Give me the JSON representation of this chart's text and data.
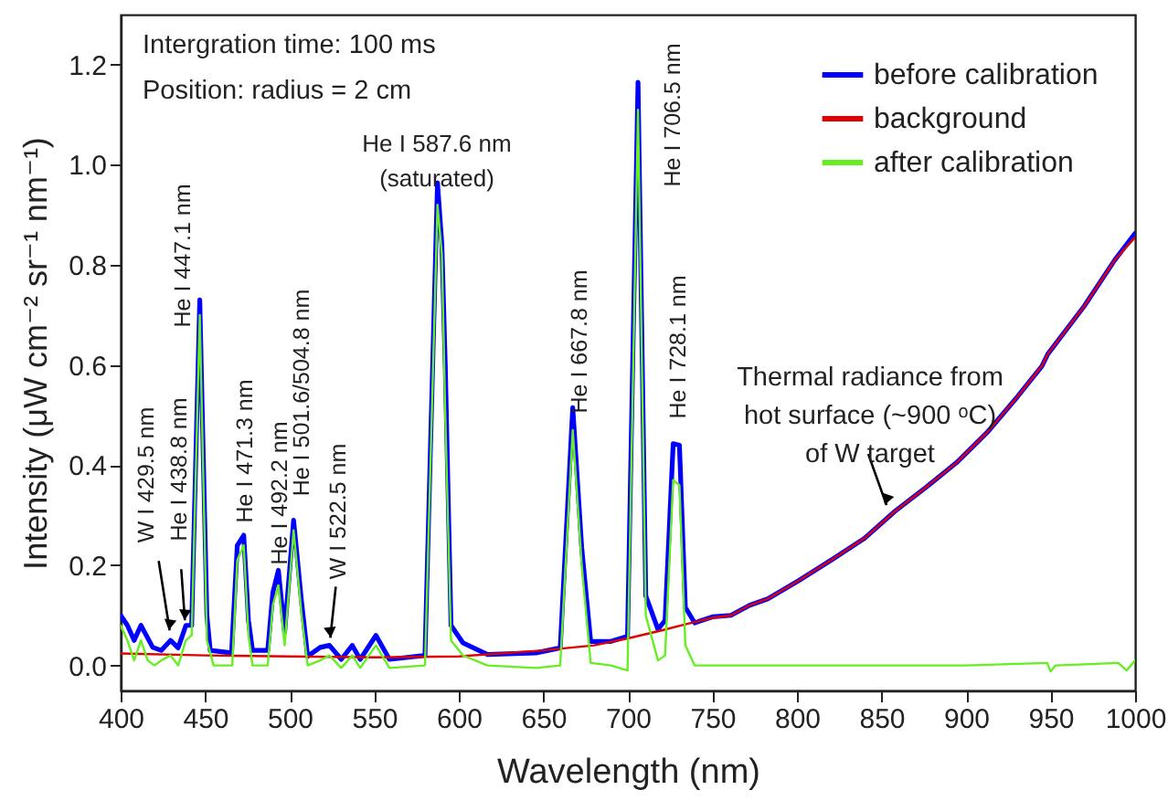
{
  "chart_data": {
    "type": "line",
    "xlabel": "Wavelength (nm)",
    "ylabel": "Intensity (μW cm⁻² sr⁻¹ nm⁻¹)",
    "xlim": [
      400,
      1000
    ],
    "xticks": [
      400,
      450,
      500,
      550,
      600,
      650,
      700,
      750,
      800,
      850,
      900,
      950,
      1000
    ],
    "ylim": [
      -0.05,
      1.3
    ],
    "yticks": [
      {
        "value": 0,
        "label": "0.0"
      },
      0.2,
      0.4,
      0.6,
      0.8,
      {
        "value": 1,
        "label": "1.0"
      },
      1.2
    ],
    "grid": false,
    "legend": "top right",
    "marker": "none",
    "line_style": "solid",
    "series": [
      {
        "name": "before calibration",
        "color": "#0000ff",
        "x": [
          400,
          404,
          408,
          412,
          419,
          424,
          429.5,
          434,
          438.6,
          442,
          446.8,
          451,
          453,
          465.6,
          469,
          472.8,
          475.6,
          478,
          487,
          490,
          493.3,
          497,
          502.3,
          507,
          510.6,
          518,
          523.5,
          530.5,
          537,
          541.7,
          551,
          559,
          580,
          587.4,
          590,
          592,
          595.4,
          602.5,
          617,
          645.7,
          660,
          667.4,
          672.7,
          678,
          690,
          699.8,
          706,
          710.6,
          717.8,
          722,
          726.8,
          730.5,
          734,
          739.5,
          750,
          761,
          772,
          782.7,
          800.8,
          820.5,
          840,
          858,
          876.4,
          894.4,
          912.4,
          930.5,
          944.9,
          948.4,
          970,
          988,
          1000
        ],
        "values": [
          0.1,
          0.08,
          0.05,
          0.08,
          0.036,
          0.03,
          0.05,
          0.035,
          0.08,
          0.08,
          0.73,
          0.1,
          0.03,
          0.025,
          0.24,
          0.26,
          0.09,
          0.03,
          0.03,
          0.145,
          0.19,
          0.066,
          0.29,
          0.127,
          0.018,
          0.036,
          0.04,
          0.012,
          0.04,
          0.012,
          0.06,
          0.012,
          0.02,
          0.964,
          0.84,
          0.6,
          0.08,
          0.045,
          0.022,
          0.025,
          0.035,
          0.515,
          0.235,
          0.048,
          0.048,
          0.058,
          1.165,
          0.139,
          0.072,
          0.09,
          0.443,
          0.44,
          0.116,
          0.085,
          0.097,
          0.1,
          0.12,
          0.133,
          0.169,
          0.211,
          0.254,
          0.308,
          0.356,
          0.405,
          0.465,
          0.537,
          0.598,
          0.622,
          0.718,
          0.81,
          0.863
        ]
      },
      {
        "name": "background",
        "color": "#e00000",
        "x": [
          400,
          450,
          500,
          550,
          600,
          650,
          680,
          700,
          720,
          735,
          750,
          761,
          772,
          782.7,
          800.8,
          820.5,
          840,
          858,
          876.4,
          894.4,
          912.4,
          930.5,
          944.9,
          948.4,
          970,
          988,
          1000
        ],
        "values": [
          0.024,
          0.02,
          0.018,
          0.016,
          0.018,
          0.03,
          0.04,
          0.054,
          0.07,
          0.083,
          0.095,
          0.1,
          0.12,
          0.133,
          0.169,
          0.211,
          0.254,
          0.308,
          0.356,
          0.405,
          0.465,
          0.537,
          0.598,
          0.622,
          0.718,
          0.81,
          0.855
        ]
      },
      {
        "name": "after calibration",
        "color": "#66ee22",
        "x": [
          400,
          404,
          408,
          412,
          416,
          420,
          424,
          429.5,
          434,
          438.6,
          442,
          446.8,
          451,
          455,
          466,
          469,
          472.8,
          475.6,
          478,
          487,
          490,
          493.3,
          497,
          502.3,
          507,
          510.6,
          518,
          523.5,
          530.5,
          537,
          541.7,
          551,
          559,
          580,
          587.4,
          590,
          592,
          595.4,
          602.5,
          617,
          645.7,
          660,
          667.4,
          672.7,
          678,
          690,
          699.8,
          706,
          710.6,
          717.8,
          722,
          726.8,
          730.5,
          734,
          739.5,
          750,
          800,
          850,
          900,
          948,
          950,
          953,
          990,
          995,
          1000
        ],
        "values": [
          0.08,
          0.05,
          0.01,
          0.05,
          0.01,
          0,
          0.01,
          0.02,
          0,
          0.05,
          0.06,
          0.7,
          0.05,
          0,
          0,
          0.21,
          0.24,
          0.06,
          0,
          0,
          0.12,
          0.16,
          0.04,
          0.27,
          0.1,
          0,
          0.01,
          0.02,
          -0.005,
          0.02,
          -0.005,
          0.04,
          -0.005,
          0,
          0.92,
          0.82,
          0.5,
          0.05,
          0.02,
          0,
          -0.005,
          0,
          0.47,
          0.2,
          0.005,
          0,
          -0.01,
          1.11,
          0.1,
          0.01,
          0.02,
          0.37,
          0.36,
          0.04,
          0,
          0,
          0,
          0,
          0,
          0.005,
          -0.012,
          0,
          0.005,
          -0.01,
          0.01
        ]
      }
    ],
    "annotations": [
      "Intergration time: 100 ms",
      "Position: radius = 2 cm",
      {
        "text": "W I 429.5 nm",
        "x": 429,
        "y": 0.07
      },
      {
        "text": "He I 438.8 nm",
        "x": 438,
        "y": 0.09
      },
      "He I 447.1 nm",
      "He I 471.3 nm",
      "He I 492.2 nm",
      "He I 501.6/504.8 nm",
      {
        "text": "W I 522.5 nm",
        "x": 524,
        "y": 0.055
      },
      "He I 667.8 nm",
      "He I 706.5 nm",
      "He I 728.1 nm",
      "He I 587.6 nm\n(saturated)",
      {
        "text": "Thermal radiance from\nhot surface (~900 ᵒC)\nof W target",
        "x": 853,
        "y": 0.32
      }
    ]
  }
}
